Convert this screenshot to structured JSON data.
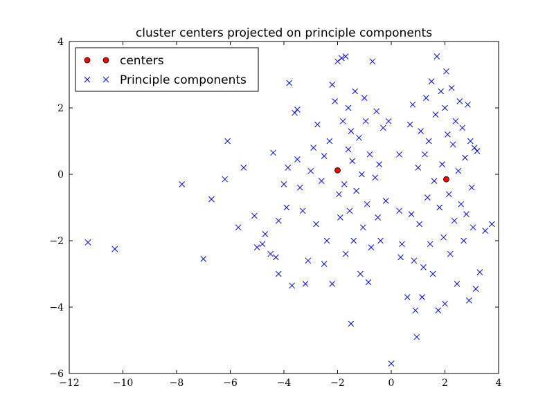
{
  "chart_data": {
    "type": "scatter",
    "title": "cluster centers projected on principle components",
    "xlabel": "",
    "ylabel": "",
    "xlim": [
      -12,
      4
    ],
    "ylim": [
      -6,
      4
    ],
    "xticks": [
      -12,
      -10,
      -8,
      -6,
      -4,
      -2,
      0,
      2,
      4
    ],
    "yticks": [
      -6,
      -4,
      -2,
      0,
      2,
      4
    ],
    "x_tick_labels": [
      "−12",
      "−10",
      "−8",
      "−6",
      "−4",
      "−2",
      "0",
      "2",
      "4"
    ],
    "y_tick_labels": [
      "−6",
      "−4",
      "−2",
      "0",
      "2",
      "4"
    ],
    "grid": false,
    "legend_position": "top-left",
    "series": [
      {
        "name": "centers",
        "marker": "circle",
        "color": "#ff0000",
        "points": [
          [
            -2.0,
            0.12
          ],
          [
            2.05,
            -0.15
          ]
        ]
      },
      {
        "name": "Principle components",
        "marker": "x",
        "color": "#0000ff",
        "points": [
          [
            -11.3,
            -2.05
          ],
          [
            -10.3,
            -2.25
          ],
          [
            -7.8,
            -0.3
          ],
          [
            -6.7,
            -0.75
          ],
          [
            -7.0,
            -2.55
          ],
          [
            -6.1,
            1.0
          ],
          [
            -6.2,
            -0.15
          ],
          [
            -5.5,
            0.2
          ],
          [
            -5.7,
            -1.6
          ],
          [
            -5.1,
            -1.25
          ],
          [
            -5.0,
            -2.2
          ],
          [
            -4.8,
            -2.1
          ],
          [
            -4.7,
            -1.8
          ],
          [
            -4.5,
            -2.4
          ],
          [
            -4.3,
            -2.5
          ],
          [
            -4.4,
            0.65
          ],
          [
            -4.2,
            -1.4
          ],
          [
            -4.0,
            -0.3
          ],
          [
            -4.2,
            -3.0
          ],
          [
            -3.9,
            -1.0
          ],
          [
            -3.85,
            0.2
          ],
          [
            -3.8,
            2.75
          ],
          [
            -3.7,
            -3.35
          ],
          [
            -3.6,
            1.85
          ],
          [
            -3.5,
            1.95
          ],
          [
            -3.5,
            0.45
          ],
          [
            -3.4,
            -0.4
          ],
          [
            -3.3,
            -1.1
          ],
          [
            -3.2,
            -3.3
          ],
          [
            -3.1,
            -2.6
          ],
          [
            -3.0,
            0.1
          ],
          [
            -2.9,
            0.8
          ],
          [
            -2.8,
            -1.5
          ],
          [
            -2.75,
            1.5
          ],
          [
            -2.6,
            -0.2
          ],
          [
            -2.5,
            0.55
          ],
          [
            -2.5,
            -2.7
          ],
          [
            -2.4,
            -2.0
          ],
          [
            -2.3,
            1.0
          ],
          [
            -2.2,
            2.7
          ],
          [
            -2.2,
            -3.3
          ],
          [
            -2.1,
            2.2
          ],
          [
            -2.0,
            3.4
          ],
          [
            -1.95,
            -0.6
          ],
          [
            -1.9,
            -1.3
          ],
          [
            -1.85,
            3.5
          ],
          [
            -1.8,
            1.6
          ],
          [
            -1.75,
            -0.3
          ],
          [
            -1.7,
            3.55
          ],
          [
            -1.7,
            -2.4
          ],
          [
            -1.6,
            0.75
          ],
          [
            -1.6,
            2.0
          ],
          [
            -1.55,
            -1.1
          ],
          [
            -1.5,
            -4.5
          ],
          [
            -1.5,
            1.3
          ],
          [
            -1.45,
            0.4
          ],
          [
            -1.4,
            -2.0
          ],
          [
            -1.35,
            2.5
          ],
          [
            -1.3,
            -0.5
          ],
          [
            -1.2,
            1.1
          ],
          [
            -1.15,
            -3.0
          ],
          [
            -1.1,
            0.0
          ],
          [
            -1.05,
            -1.6
          ],
          [
            -1.0,
            2.3
          ],
          [
            -0.95,
            1.6
          ],
          [
            -0.9,
            -0.9
          ],
          [
            -0.85,
            -3.25
          ],
          [
            -0.8,
            0.6
          ],
          [
            -0.75,
            -2.2
          ],
          [
            -0.7,
            3.4
          ],
          [
            -0.6,
            -0.1
          ],
          [
            -0.55,
            1.9
          ],
          [
            -0.5,
            -1.3
          ],
          [
            -0.45,
            0.3
          ],
          [
            -0.4,
            -2.0
          ],
          [
            -0.3,
            1.4
          ],
          [
            -0.2,
            -0.8
          ],
          [
            -0.1,
            1.6
          ],
          [
            0.0,
            -5.7
          ],
          [
            0.3,
            0.6
          ],
          [
            0.3,
            -1.1
          ],
          [
            0.35,
            -2.5
          ],
          [
            0.4,
            -2.1
          ],
          [
            0.6,
            -3.7
          ],
          [
            0.7,
            1.5
          ],
          [
            0.75,
            -1.2
          ],
          [
            0.8,
            2.1
          ],
          [
            0.85,
            -2.6
          ],
          [
            0.9,
            -4.1
          ],
          [
            0.95,
            -4.9
          ],
          [
            1.0,
            0.2
          ],
          [
            1.05,
            -1.5
          ],
          [
            1.1,
            1.3
          ],
          [
            1.15,
            -3.7
          ],
          [
            1.2,
            -2.8
          ],
          [
            1.25,
            0.6
          ],
          [
            1.3,
            2.3
          ],
          [
            1.35,
            -0.7
          ],
          [
            1.4,
            1.0
          ],
          [
            1.45,
            -2.1
          ],
          [
            1.5,
            2.8
          ],
          [
            1.55,
            -3.0
          ],
          [
            1.6,
            -0.2
          ],
          [
            1.65,
            1.8
          ],
          [
            1.7,
            3.55
          ],
          [
            1.75,
            -4.1
          ],
          [
            1.8,
            -1.0
          ],
          [
            1.85,
            2.5
          ],
          [
            1.9,
            0.3
          ],
          [
            1.95,
            -1.9
          ],
          [
            2.0,
            2.0
          ],
          [
            2.0,
            -3.9
          ],
          [
            2.05,
            3.1
          ],
          [
            2.1,
            1.2
          ],
          [
            2.15,
            -0.6
          ],
          [
            2.2,
            -2.4
          ],
          [
            2.25,
            2.6
          ],
          [
            2.3,
            0.9
          ],
          [
            2.35,
            -1.4
          ],
          [
            2.4,
            1.6
          ],
          [
            2.45,
            -3.3
          ],
          [
            2.5,
            0.1
          ],
          [
            2.55,
            2.2
          ],
          [
            2.6,
            -0.9
          ],
          [
            2.65,
            1.4
          ],
          [
            2.7,
            -2.0
          ],
          [
            2.75,
            0.5
          ],
          [
            2.8,
            -1.2
          ],
          [
            2.85,
            2.1
          ],
          [
            2.9,
            -3.8
          ],
          [
            2.95,
            1.0
          ],
          [
            3.0,
            -0.4
          ],
          [
            3.05,
            -1.6
          ],
          [
            3.1,
            0.8
          ],
          [
            3.15,
            -3.45
          ],
          [
            3.2,
            0.7
          ],
          [
            3.3,
            -2.95
          ],
          [
            3.5,
            -1.7
          ],
          [
            3.75,
            -1.5
          ]
        ]
      }
    ]
  }
}
